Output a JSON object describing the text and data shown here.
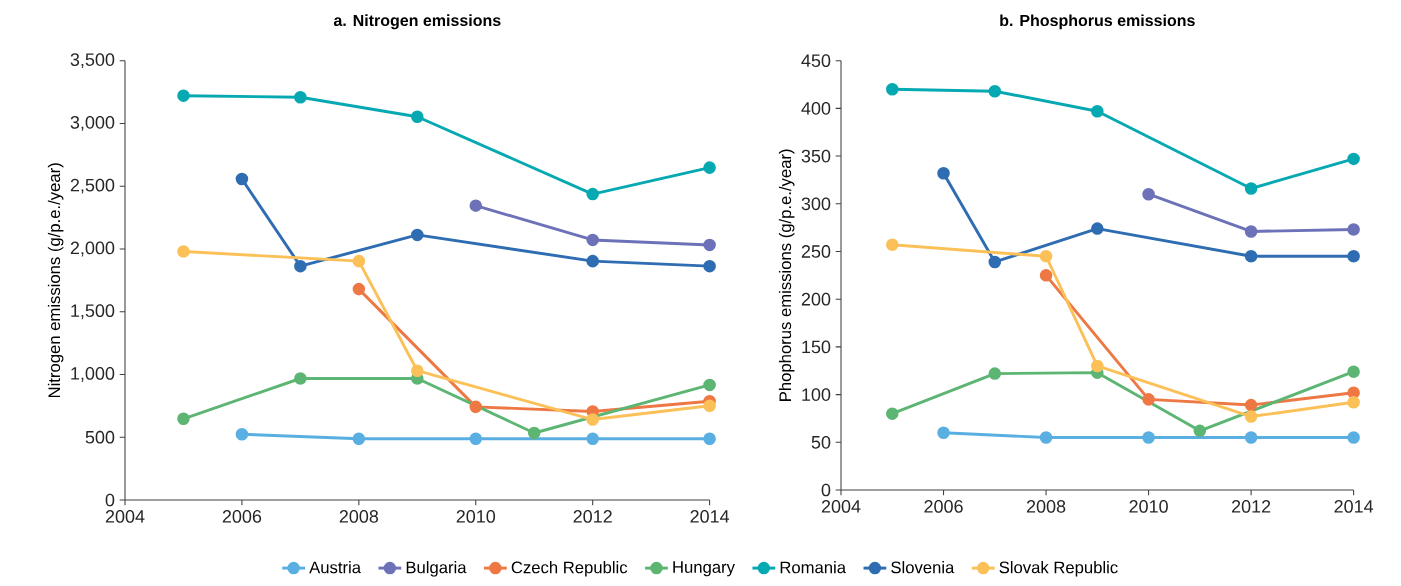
{
  "chart_data": [
    {
      "type": "line",
      "title": "a. Nitrogen emissions",
      "ylabel": "Nitrogen emissions (g/p.e./year)",
      "xlim": [
        2004,
        2014
      ],
      "xticks": [
        2004,
        2006,
        2008,
        2010,
        2012,
        2014
      ],
      "ylim": [
        0,
        3500
      ],
      "yticks": [
        0,
        500,
        {
          "value": 1000,
          "label": "1,000"
        },
        {
          "value": 1500,
          "label": "1,500"
        },
        {
          "value": 2000,
          "label": "2,000"
        },
        {
          "value": 2500,
          "label": "2,500"
        },
        {
          "value": 3000,
          "label": "3,000"
        },
        {
          "value": 3500,
          "label": "3,500"
        }
      ],
      "grid": false,
      "legend": "bottom",
      "marker": "circle",
      "line_style": "solid",
      "series": [
        {
          "name": "Austria",
          "color": "#5aafe2",
          "x": [
            2006,
            2008,
            2010,
            2012,
            2014
          ],
          "values": [
            524,
            488,
            488,
            488,
            488
          ]
        },
        {
          "name": "Bulgaria",
          "color": "#6d72b8",
          "x": [
            2010,
            2012,
            2014
          ],
          "values": [
            2345,
            2072,
            2032
          ]
        },
        {
          "name": "Czech Republic",
          "color": "#ee7843",
          "x": [
            2008,
            2010,
            2012,
            2014
          ],
          "values": [
            1680,
            742,
            705,
            787
          ]
        },
        {
          "name": "Hungary",
          "color": "#5db573",
          "x": [
            2005,
            2007,
            2009,
            2011,
            2014
          ],
          "values": [
            647,
            968,
            968,
            534,
            917
          ]
        },
        {
          "name": "Romania",
          "color": "#06a9b2",
          "x": [
            2005,
            2007,
            2009,
            2012,
            2014
          ],
          "values": [
            3221,
            3209,
            3053,
            2437,
            2648
          ]
        },
        {
          "name": "Slovenia",
          "color": "#2e6db2",
          "x": [
            2006,
            2007,
            2009,
            2012,
            2014
          ],
          "values": [
            2557,
            1863,
            2112,
            1903,
            1863
          ]
        },
        {
          "name": "Slovak Republic",
          "color": "#fcc058",
          "x": [
            2005,
            2008,
            2009,
            2012,
            2014
          ],
          "values": [
            1980,
            1903,
            1030,
            641,
            751
          ]
        }
      ]
    },
    {
      "type": "line",
      "title": "b. Phosphorus emissions",
      "ylabel": "Phophorus emissions (g/p.e./year)",
      "xlim": [
        2004,
        2014
      ],
      "xticks": [
        2004,
        2006,
        2008,
        2010,
        2012,
        2014
      ],
      "ylim": [
        0,
        450
      ],
      "yticks": [
        0,
        50,
        100,
        150,
        200,
        250,
        300,
        350,
        400,
        450
      ],
      "grid": false,
      "marker": "circle",
      "line_style": "solid",
      "series": [
        {
          "color": "#5aafe2",
          "x": [
            2006,
            2008,
            2010,
            2012,
            2014
          ],
          "values": [
            60,
            55,
            55,
            55,
            55
          ]
        },
        {
          "color": "#6d72b8",
          "x": [
            2010,
            2012,
            2014
          ],
          "values": [
            310,
            271,
            273
          ]
        },
        {
          "color": "#ee7843",
          "x": [
            2008,
            2010,
            2012,
            2014
          ],
          "values": [
            225,
            95,
            89,
            102
          ]
        },
        {
          "color": "#5db573",
          "x": [
            2005,
            2007,
            2009,
            2011,
            2014
          ],
          "values": [
            80,
            122,
            123,
            62,
            124
          ]
        },
        {
          "color": "#06a9b2",
          "x": [
            2005,
            2007,
            2009,
            2012,
            2014
          ],
          "values": [
            420,
            418,
            397,
            316,
            347
          ]
        },
        {
          "color": "#2e6db2",
          "x": [
            2006,
            2007,
            2009,
            2012,
            2014
          ],
          "values": [
            332,
            239,
            274,
            245,
            245
          ]
        },
        {
          "color": "#fcc058",
          "x": [
            2005,
            2008,
            2009,
            2012,
            2014
          ],
          "values": [
            257,
            245,
            130,
            77,
            92
          ]
        }
      ]
    }
  ]
}
